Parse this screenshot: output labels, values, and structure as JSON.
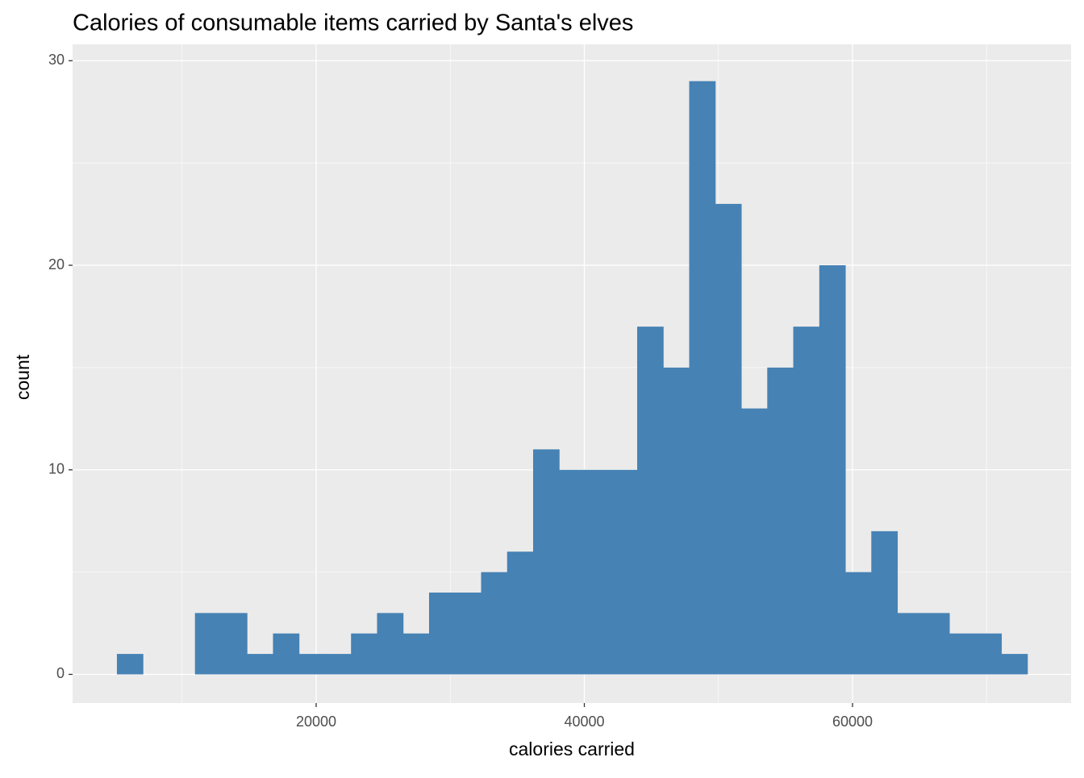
{
  "chart_data": {
    "type": "histogram",
    "title": "Calories of consumable items carried by Santa's elves",
    "x_label": "calories carried",
    "y_label": "count",
    "color": "#4682b4",
    "bins": [
      5140,
      7080,
      9020,
      10960,
      12900,
      14840,
      16780,
      18720,
      20660,
      22600,
      24540,
      26480,
      28420,
      30360,
      32300,
      34240,
      36180,
      38120,
      40060,
      42000,
      43940,
      45880,
      47820,
      49760,
      51700,
      53640,
      55580,
      57520,
      59460,
      61400,
      63340,
      65280,
      67220,
      69160,
      71100,
      73040
    ],
    "counts": [
      1,
      0,
      0,
      3,
      3,
      1,
      2,
      1,
      1,
      2,
      3,
      2,
      4,
      4,
      5,
      6,
      11,
      10,
      10,
      10,
      17,
      15,
      29,
      23,
      13,
      15,
      17,
      20,
      5,
      7,
      3,
      3,
      2,
      2,
      1
    ],
    "xlim": [
      1835,
      76300
    ],
    "xticks": [
      20000,
      40000,
      60000
    ],
    "xminor": [
      10000,
      30000,
      50000,
      70000
    ],
    "ylim": [
      -1.4,
      30.8
    ],
    "yticks": [
      0,
      10,
      20,
      30
    ],
    "yminor": [
      5,
      15,
      25
    ],
    "grid": true
  }
}
